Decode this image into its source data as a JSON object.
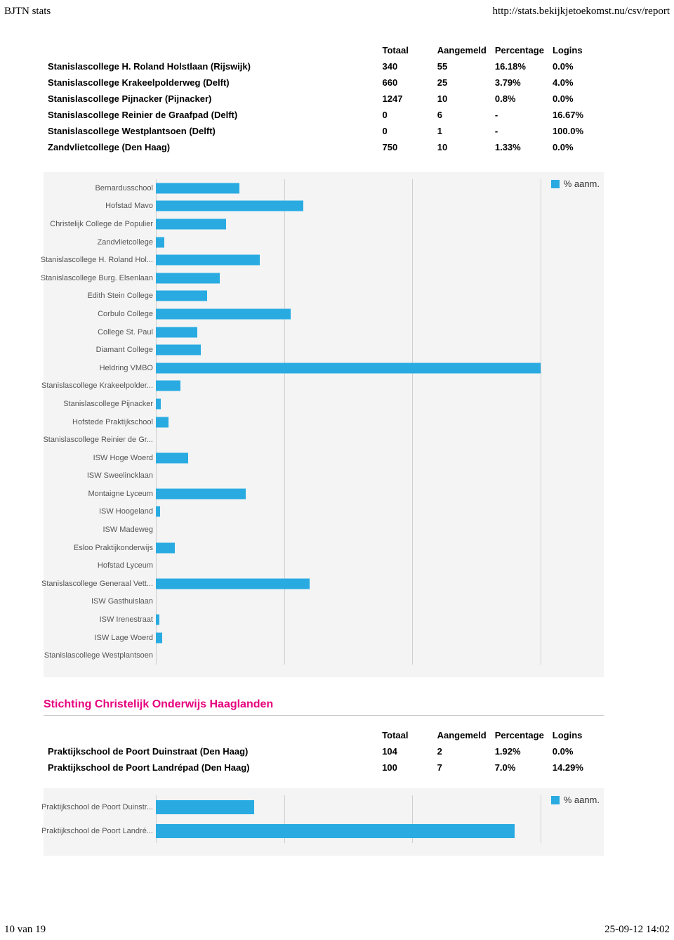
{
  "header": {
    "left": "BJTN stats",
    "right": "http://stats.bekijkjetoekomst.nu/csv/report"
  },
  "footer": {
    "left": "10 van 19",
    "right": "25-09-12 14:02"
  },
  "colors": {
    "bar": "#29abe2",
    "chart_bg": "#f4f4f4",
    "grid": "#cfcfcf",
    "heading": "#e6007e"
  },
  "table1": {
    "headers": [
      "",
      "Totaal",
      "Aangemeld",
      "Percentage",
      "Logins"
    ],
    "rows": [
      [
        "Stanislascollege H. Roland Holstlaan (Rijswijk)",
        "340",
        "55",
        "16.18%",
        "0.0%"
      ],
      [
        "Stanislascollege Krakeelpolderweg (Delft)",
        "660",
        "25",
        "3.79%",
        "4.0%"
      ],
      [
        "Stanislascollege Pijnacker (Pijnacker)",
        "1247",
        "10",
        "0.8%",
        "0.0%"
      ],
      [
        "Stanislascollege Reinier de Graafpad (Delft)",
        "0",
        "6",
        "-",
        "16.67%"
      ],
      [
        "Stanislascollege Westplantsoen (Delft)",
        "0",
        "1",
        "-",
        "100.0%"
      ],
      [
        "Zandvlietcollege (Den Haag)",
        "750",
        "10",
        "1.33%",
        "0.0%"
      ]
    ]
  },
  "chart1": {
    "type": "bar-horizontal",
    "legend": "% aanm.",
    "x_max": 60,
    "grid_step": 20,
    "label_fontsize": 11,
    "items": [
      {
        "label": "Bernardusschool",
        "value": 13
      },
      {
        "label": "Hofstad Mavo",
        "value": 23
      },
      {
        "label": "Christelijk College de Populier",
        "value": 11
      },
      {
        "label": "Zandvlietcollege",
        "value": 1.3
      },
      {
        "label": "Stanislascollege H. Roland Hol...",
        "value": 16.2
      },
      {
        "label": "Stanislascollege Burg. Elsenlaan",
        "value": 10
      },
      {
        "label": "Edith Stein College",
        "value": 8
      },
      {
        "label": "Corbulo College",
        "value": 21
      },
      {
        "label": "College St. Paul",
        "value": 6.5
      },
      {
        "label": "Diamant College",
        "value": 7
      },
      {
        "label": "Heldring VMBO",
        "value": 60
      },
      {
        "label": "Stanislascollege Krakeelpolder...",
        "value": 3.8
      },
      {
        "label": "Stanislascollege Pijnacker",
        "value": 0.8
      },
      {
        "label": "Hofstede Praktijkschool",
        "value": 2
      },
      {
        "label": "Stanislascollege Reinier de Gr...",
        "value": 0
      },
      {
        "label": "ISW Hoge Woerd",
        "value": 5
      },
      {
        "label": "ISW Sweelincklaan",
        "value": 0
      },
      {
        "label": "Montaigne Lyceum",
        "value": 14
      },
      {
        "label": "ISW Hoogeland",
        "value": 0.7
      },
      {
        "label": "ISW Madeweg",
        "value": 0
      },
      {
        "label": "Esloo Praktijkonderwijs",
        "value": 3
      },
      {
        "label": "Hofstad Lyceum",
        "value": 0
      },
      {
        "label": "Stanislascollege Generaal Vett...",
        "value": 24
      },
      {
        "label": "ISW Gasthuislaan",
        "value": 0
      },
      {
        "label": "ISW Irenestraat",
        "value": 0.5
      },
      {
        "label": "ISW Lage Woerd",
        "value": 1
      },
      {
        "label": "Stanislascollege Westplantsoen",
        "value": 0
      }
    ]
  },
  "section2": {
    "title": "Stichting Christelijk Onderwijs Haaglanden"
  },
  "table2": {
    "headers": [
      "",
      "Totaal",
      "Aangemeld",
      "Percentage",
      "Logins"
    ],
    "rows": [
      [
        "Praktijkschool de Poort Duinstraat (Den Haag)",
        "104",
        "2",
        "1.92%",
        "0.0%"
      ],
      [
        "Praktijkschool de Poort Landrépad (Den Haag)",
        "100",
        "7",
        "7.0%",
        "14.29%"
      ]
    ]
  },
  "chart2": {
    "type": "bar-horizontal",
    "legend": "% aanm.",
    "x_max": 7.5,
    "grid_step": 2.5,
    "label_fontsize": 11,
    "items": [
      {
        "label": "Praktijkschool de Poort Duinstr...",
        "value": 1.92
      },
      {
        "label": "Praktijkschool de Poort Landré...",
        "value": 7.0
      }
    ]
  }
}
